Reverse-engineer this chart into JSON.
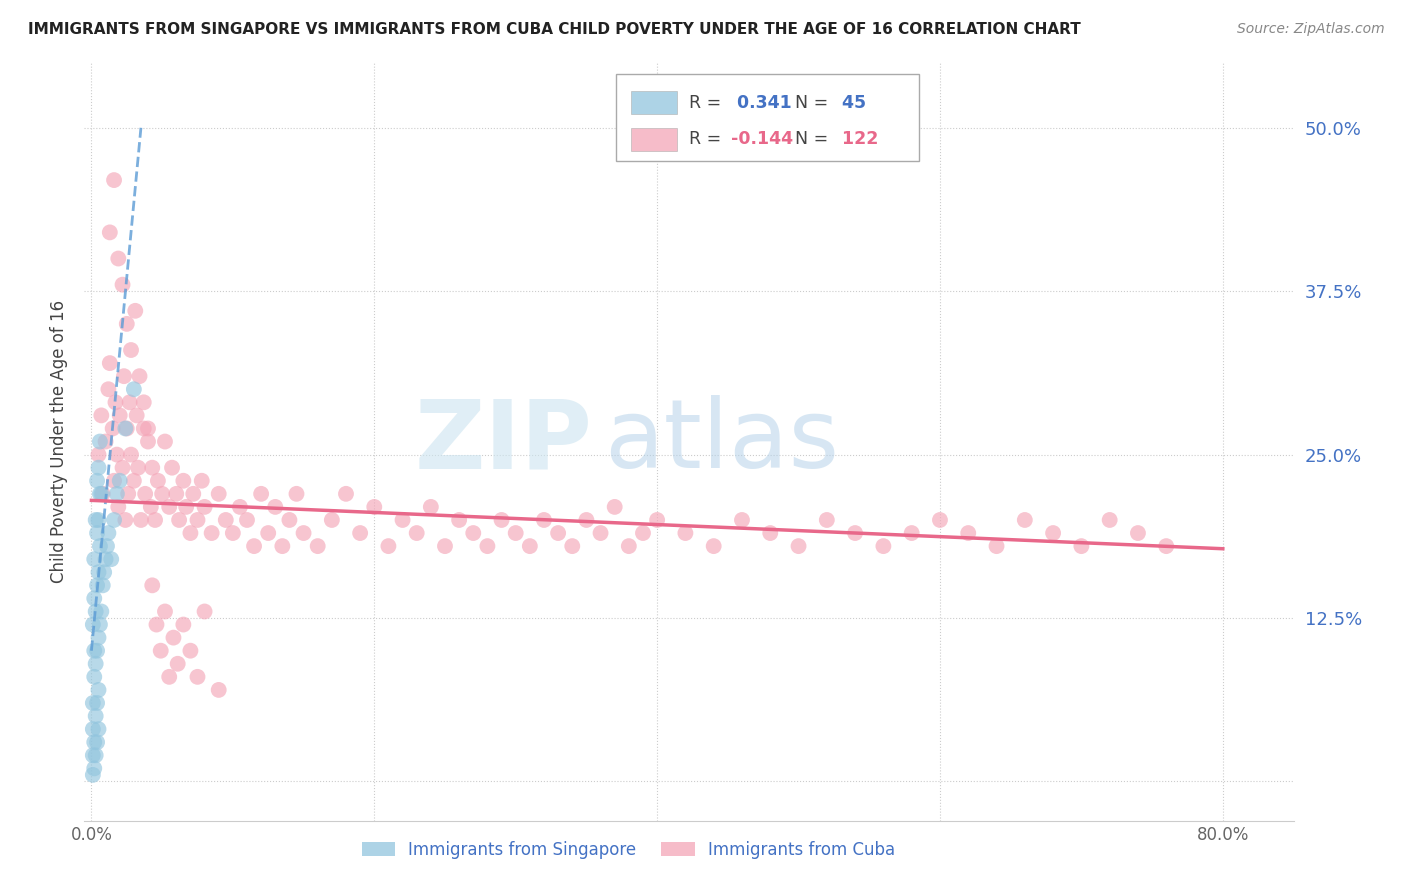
{
  "title": "IMMIGRANTS FROM SINGAPORE VS IMMIGRANTS FROM CUBA CHILD POVERTY UNDER THE AGE OF 16 CORRELATION CHART",
  "source": "Source: ZipAtlas.com",
  "ylabel": "Child Poverty Under the Age of 16",
  "yticks": [
    0.0,
    0.125,
    0.25,
    0.375,
    0.5
  ],
  "ytick_labels": [
    "",
    "12.5%",
    "25.0%",
    "37.5%",
    "50.0%"
  ],
  "xlim": [
    -0.005,
    0.85
  ],
  "ylim": [
    -0.03,
    0.55
  ],
  "singapore_R": 0.341,
  "singapore_N": 45,
  "cuba_R": -0.144,
  "cuba_N": 122,
  "singapore_color": "#92c5de",
  "cuba_color": "#f4a6b8",
  "singapore_line_color": "#5b9bd5",
  "cuba_line_color": "#e8688a",
  "legend_label_singapore": "Immigrants from Singapore",
  "legend_label_cuba": "Immigrants from Cuba",
  "watermark_zip": "ZIP",
  "watermark_atlas": "atlas",
  "sg_x": [
    0.001,
    0.001,
    0.001,
    0.001,
    0.001,
    0.002,
    0.002,
    0.002,
    0.002,
    0.002,
    0.002,
    0.003,
    0.003,
    0.003,
    0.003,
    0.003,
    0.004,
    0.004,
    0.004,
    0.004,
    0.004,
    0.004,
    0.005,
    0.005,
    0.005,
    0.005,
    0.005,
    0.005,
    0.006,
    0.006,
    0.006,
    0.006,
    0.007,
    0.007,
    0.008,
    0.009,
    0.01,
    0.011,
    0.012,
    0.014,
    0.016,
    0.018,
    0.02,
    0.024,
    0.03
  ],
  "sg_y": [
    0.005,
    0.02,
    0.04,
    0.06,
    0.12,
    0.01,
    0.03,
    0.08,
    0.1,
    0.14,
    0.17,
    0.02,
    0.05,
    0.09,
    0.13,
    0.2,
    0.03,
    0.06,
    0.1,
    0.15,
    0.19,
    0.23,
    0.04,
    0.07,
    0.11,
    0.16,
    0.2,
    0.24,
    0.12,
    0.18,
    0.22,
    0.26,
    0.13,
    0.22,
    0.15,
    0.16,
    0.17,
    0.18,
    0.19,
    0.17,
    0.2,
    0.22,
    0.23,
    0.27,
    0.3
  ],
  "cu_x": [
    0.005,
    0.007,
    0.008,
    0.01,
    0.012,
    0.013,
    0.015,
    0.016,
    0.017,
    0.018,
    0.019,
    0.02,
    0.022,
    0.023,
    0.024,
    0.025,
    0.026,
    0.027,
    0.028,
    0.03,
    0.032,
    0.033,
    0.035,
    0.037,
    0.038,
    0.04,
    0.042,
    0.043,
    0.045,
    0.047,
    0.05,
    0.052,
    0.055,
    0.057,
    0.06,
    0.062,
    0.065,
    0.067,
    0.07,
    0.072,
    0.075,
    0.078,
    0.08,
    0.085,
    0.09,
    0.095,
    0.1,
    0.105,
    0.11,
    0.115,
    0.12,
    0.125,
    0.13,
    0.135,
    0.14,
    0.145,
    0.15,
    0.16,
    0.17,
    0.18,
    0.19,
    0.2,
    0.21,
    0.22,
    0.23,
    0.24,
    0.25,
    0.26,
    0.27,
    0.28,
    0.29,
    0.3,
    0.31,
    0.32,
    0.33,
    0.34,
    0.35,
    0.36,
    0.37,
    0.38,
    0.39,
    0.4,
    0.42,
    0.44,
    0.46,
    0.48,
    0.5,
    0.52,
    0.54,
    0.56,
    0.58,
    0.6,
    0.62,
    0.64,
    0.66,
    0.68,
    0.7,
    0.72,
    0.74,
    0.76,
    0.013,
    0.016,
    0.019,
    0.022,
    0.025,
    0.028,
    0.031,
    0.034,
    0.037,
    0.04,
    0.043,
    0.046,
    0.049,
    0.052,
    0.055,
    0.058,
    0.061,
    0.065,
    0.07,
    0.075,
    0.08,
    0.09
  ],
  "cu_y": [
    0.25,
    0.28,
    0.22,
    0.26,
    0.3,
    0.32,
    0.27,
    0.23,
    0.29,
    0.25,
    0.21,
    0.28,
    0.24,
    0.31,
    0.2,
    0.27,
    0.22,
    0.29,
    0.25,
    0.23,
    0.28,
    0.24,
    0.2,
    0.27,
    0.22,
    0.26,
    0.21,
    0.24,
    0.2,
    0.23,
    0.22,
    0.26,
    0.21,
    0.24,
    0.22,
    0.2,
    0.23,
    0.21,
    0.19,
    0.22,
    0.2,
    0.23,
    0.21,
    0.19,
    0.22,
    0.2,
    0.19,
    0.21,
    0.2,
    0.18,
    0.22,
    0.19,
    0.21,
    0.18,
    0.2,
    0.22,
    0.19,
    0.18,
    0.2,
    0.22,
    0.19,
    0.21,
    0.18,
    0.2,
    0.19,
    0.21,
    0.18,
    0.2,
    0.19,
    0.18,
    0.2,
    0.19,
    0.18,
    0.2,
    0.19,
    0.18,
    0.2,
    0.19,
    0.21,
    0.18,
    0.19,
    0.2,
    0.19,
    0.18,
    0.2,
    0.19,
    0.18,
    0.2,
    0.19,
    0.18,
    0.19,
    0.2,
    0.19,
    0.18,
    0.2,
    0.19,
    0.18,
    0.2,
    0.19,
    0.18,
    0.42,
    0.46,
    0.4,
    0.38,
    0.35,
    0.33,
    0.36,
    0.31,
    0.29,
    0.27,
    0.15,
    0.12,
    0.1,
    0.13,
    0.08,
    0.11,
    0.09,
    0.12,
    0.1,
    0.08,
    0.13,
    0.07
  ],
  "cuba_line_x0": 0.0,
  "cuba_line_y0": 0.215,
  "cuba_line_x1": 0.8,
  "cuba_line_y1": 0.178,
  "sg_line_x0": 0.0,
  "sg_line_y0": 0.1,
  "sg_line_x1": 0.035,
  "sg_line_y1": 0.5
}
